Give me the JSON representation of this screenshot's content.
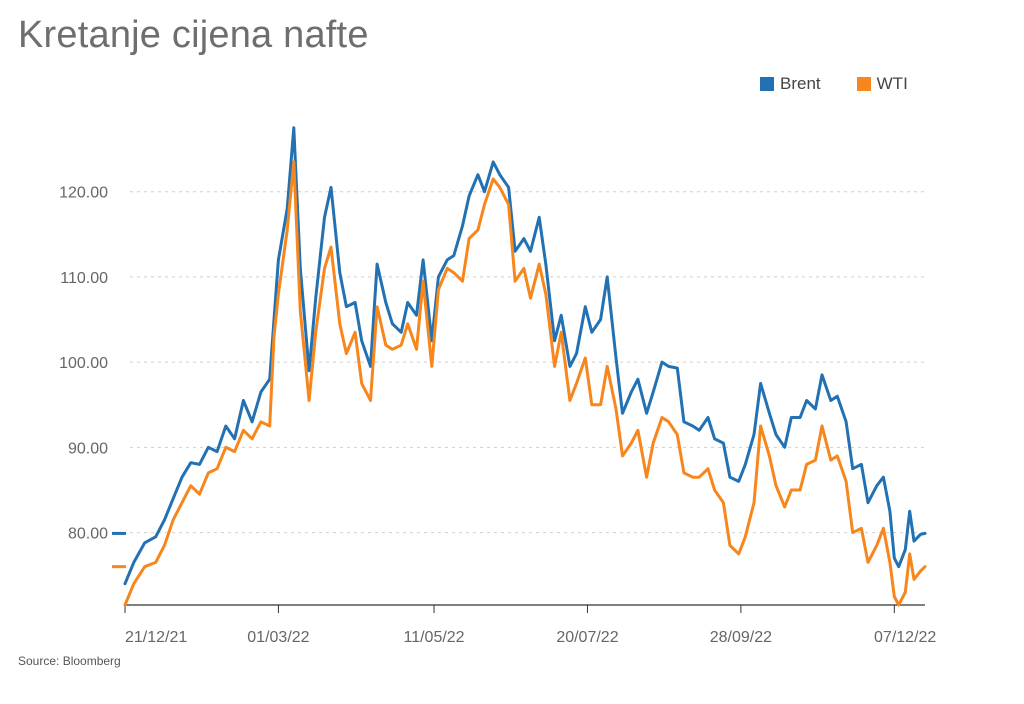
{
  "title": "Kretanje cijena nafte",
  "source": "Source: Bloomberg",
  "colors": {
    "brent": "#2271b3",
    "wti": "#f7861d",
    "grid": "#d0d0d0",
    "axis": "#333333"
  },
  "chart_data": {
    "type": "line",
    "title": "Kretanje cijena nafte",
    "xlabel": "",
    "ylabel": "",
    "ylim": [
      71.5,
      129
    ],
    "grid": true,
    "legend_position": "top-right",
    "y_ticks": [
      "80.00",
      "90.00",
      "100.00",
      "110.00",
      "120.00"
    ],
    "y_tick_values": [
      80,
      90,
      100,
      110,
      120
    ],
    "x_ticks": [
      "21/12/21",
      "01/03/22",
      "11/05/22",
      "20/07/22",
      "28/09/22",
      "07/12/22"
    ],
    "last_values": {
      "Brent": 79.9,
      "WTI": 76.0
    },
    "series": [
      {
        "name": "Brent",
        "points": [
          [
            "21/12/21",
            74.0
          ],
          [
            "25/12/21",
            76.5
          ],
          [
            "30/12/21",
            78.8
          ],
          [
            "04/01/22",
            79.5
          ],
          [
            "08/01/22",
            81.5
          ],
          [
            "12/01/22",
            84.0
          ],
          [
            "16/01/22",
            86.5
          ],
          [
            "20/01/22",
            88.2
          ],
          [
            "24/01/22",
            88.0
          ],
          [
            "28/01/22",
            90.0
          ],
          [
            "01/02/22",
            89.5
          ],
          [
            "05/02/22",
            92.5
          ],
          [
            "09/02/22",
            91.0
          ],
          [
            "13/02/22",
            95.5
          ],
          [
            "17/02/22",
            93.0
          ],
          [
            "21/02/22",
            96.5
          ],
          [
            "25/02/22",
            98.0
          ],
          [
            "27/02/22",
            105.0
          ],
          [
            "01/03/22",
            112.0
          ],
          [
            "05/03/22",
            118.0
          ],
          [
            "08/03/22",
            127.5
          ],
          [
            "11/03/22",
            111.0
          ],
          [
            "15/03/22",
            99.0
          ],
          [
            "18/03/22",
            107.5
          ],
          [
            "22/03/22",
            117.0
          ],
          [
            "25/03/22",
            120.5
          ],
          [
            "29/03/22",
            110.5
          ],
          [
            "01/04/22",
            106.5
          ],
          [
            "05/04/22",
            107.0
          ],
          [
            "08/04/22",
            102.5
          ],
          [
            "12/04/22",
            99.5
          ],
          [
            "15/04/22",
            111.5
          ],
          [
            "19/04/22",
            107.0
          ],
          [
            "22/04/22",
            104.5
          ],
          [
            "26/04/22",
            103.5
          ],
          [
            "29/04/22",
            107.0
          ],
          [
            "03/05/22",
            105.5
          ],
          [
            "06/05/22",
            112.0
          ],
          [
            "10/05/22",
            102.5
          ],
          [
            "13/05/22",
            110.0
          ],
          [
            "17/05/22",
            112.0
          ],
          [
            "20/05/22",
            112.5
          ],
          [
            "24/05/22",
            116.0
          ],
          [
            "27/05/22",
            119.5
          ],
          [
            "31/05/22",
            122.0
          ],
          [
            "03/06/22",
            120.0
          ],
          [
            "07/06/22",
            123.5
          ],
          [
            "10/06/22",
            122.0
          ],
          [
            "14/06/22",
            120.5
          ],
          [
            "17/06/22",
            113.0
          ],
          [
            "21/06/22",
            114.5
          ],
          [
            "24/06/22",
            113.0
          ],
          [
            "28/06/22",
            117.0
          ],
          [
            "01/07/22",
            111.5
          ],
          [
            "05/07/22",
            102.5
          ],
          [
            "08/07/22",
            105.5
          ],
          [
            "12/07/22",
            99.5
          ],
          [
            "15/07/22",
            101.0
          ],
          [
            "19/07/22",
            106.5
          ],
          [
            "22/07/22",
            103.5
          ],
          [
            "26/07/22",
            105.0
          ],
          [
            "29/07/22",
            110.0
          ],
          [
            "02/08/22",
            100.5
          ],
          [
            "05/08/22",
            94.0
          ],
          [
            "09/08/22",
            96.5
          ],
          [
            "12/08/22",
            98.0
          ],
          [
            "16/08/22",
            94.0
          ],
          [
            "19/08/22",
            96.5
          ],
          [
            "23/08/22",
            100.0
          ],
          [
            "26/08/22",
            99.5
          ],
          [
            "30/08/22",
            99.3
          ],
          [
            "02/09/22",
            93.0
          ],
          [
            "06/09/22",
            92.5
          ],
          [
            "09/09/22",
            92.0
          ],
          [
            "13/09/22",
            93.5
          ],
          [
            "16/09/22",
            91.0
          ],
          [
            "20/09/22",
            90.5
          ],
          [
            "23/09/22",
            86.5
          ],
          [
            "27/09/22",
            86.0
          ],
          [
            "30/09/22",
            88.0
          ],
          [
            "04/10/22",
            91.5
          ],
          [
            "07/10/22",
            97.5
          ],
          [
            "11/10/22",
            94.0
          ],
          [
            "14/10/22",
            91.5
          ],
          [
            "18/10/22",
            90.0
          ],
          [
            "21/10/22",
            93.5
          ],
          [
            "25/10/22",
            93.5
          ],
          [
            "28/10/22",
            95.5
          ],
          [
            "01/11/22",
            94.5
          ],
          [
            "04/11/22",
            98.5
          ],
          [
            "08/11/22",
            95.5
          ],
          [
            "11/11/22",
            96.0
          ],
          [
            "15/11/22",
            93.0
          ],
          [
            "18/11/22",
            87.5
          ],
          [
            "22/11/22",
            88.0
          ],
          [
            "25/11/22",
            83.5
          ],
          [
            "29/11/22",
            85.5
          ],
          [
            "02/12/22",
            86.5
          ],
          [
            "05/12/22",
            82.5
          ],
          [
            "07/12/22",
            77.0
          ],
          [
            "09/12/22",
            76.0
          ],
          [
            "12/12/22",
            78.0
          ],
          [
            "14/12/22",
            82.5
          ],
          [
            "16/12/22",
            79.0
          ],
          [
            "19/12/22",
            79.8
          ],
          [
            "21/12/22",
            79.9
          ]
        ]
      },
      {
        "name": "WTI",
        "points": [
          [
            "21/12/21",
            71.5
          ],
          [
            "25/12/21",
            74.0
          ],
          [
            "30/12/21",
            76.0
          ],
          [
            "04/01/22",
            76.5
          ],
          [
            "08/01/22",
            78.5
          ],
          [
            "12/01/22",
            81.5
          ],
          [
            "16/01/22",
            83.5
          ],
          [
            "20/01/22",
            85.5
          ],
          [
            "24/01/22",
            84.5
          ],
          [
            "28/01/22",
            87.0
          ],
          [
            "01/02/22",
            87.5
          ],
          [
            "05/02/22",
            90.0
          ],
          [
            "09/02/22",
            89.5
          ],
          [
            "13/02/22",
            92.0
          ],
          [
            "17/02/22",
            91.0
          ],
          [
            "21/02/22",
            93.0
          ],
          [
            "25/02/22",
            92.5
          ],
          [
            "27/02/22",
            103.0
          ],
          [
            "01/03/22",
            108.0
          ],
          [
            "05/03/22",
            115.5
          ],
          [
            "08/03/22",
            123.5
          ],
          [
            "11/03/22",
            106.0
          ],
          [
            "15/03/22",
            95.5
          ],
          [
            "18/03/22",
            103.5
          ],
          [
            "22/03/22",
            111.0
          ],
          [
            "25/03/22",
            113.5
          ],
          [
            "29/03/22",
            104.5
          ],
          [
            "01/04/22",
            101.0
          ],
          [
            "05/04/22",
            103.5
          ],
          [
            "08/04/22",
            97.5
          ],
          [
            "12/04/22",
            95.5
          ],
          [
            "15/04/22",
            106.5
          ],
          [
            "19/04/22",
            102.0
          ],
          [
            "22/04/22",
            101.5
          ],
          [
            "26/04/22",
            102.0
          ],
          [
            "29/04/22",
            104.5
          ],
          [
            "03/05/22",
            101.5
          ],
          [
            "06/05/22",
            109.5
          ],
          [
            "10/05/22",
            99.5
          ],
          [
            "13/05/22",
            108.5
          ],
          [
            "17/05/22",
            111.0
          ],
          [
            "20/05/22",
            110.5
          ],
          [
            "24/05/22",
            109.5
          ],
          [
            "27/05/22",
            114.5
          ],
          [
            "31/05/22",
            115.5
          ],
          [
            "03/06/22",
            118.5
          ],
          [
            "07/06/22",
            121.5
          ],
          [
            "10/06/22",
            120.5
          ],
          [
            "14/06/22",
            118.5
          ],
          [
            "17/06/22",
            109.5
          ],
          [
            "21/06/22",
            111.0
          ],
          [
            "24/06/22",
            107.5
          ],
          [
            "28/06/22",
            111.5
          ],
          [
            "01/07/22",
            108.0
          ],
          [
            "05/07/22",
            99.5
          ],
          [
            "08/07/22",
            103.5
          ],
          [
            "12/07/22",
            95.5
          ],
          [
            "15/07/22",
            97.5
          ],
          [
            "19/07/22",
            100.5
          ],
          [
            "22/07/22",
            95.0
          ],
          [
            "26/07/22",
            95.0
          ],
          [
            "29/07/22",
            99.5
          ],
          [
            "02/08/22",
            94.5
          ],
          [
            "05/08/22",
            89.0
          ],
          [
            "09/08/22",
            90.5
          ],
          [
            "12/08/22",
            92.0
          ],
          [
            "16/08/22",
            86.5
          ],
          [
            "19/08/22",
            90.5
          ],
          [
            "23/08/22",
            93.5
          ],
          [
            "26/08/22",
            93.0
          ],
          [
            "30/08/22",
            91.5
          ],
          [
            "02/09/22",
            87.0
          ],
          [
            "06/09/22",
            86.5
          ],
          [
            "09/09/22",
            86.5
          ],
          [
            "13/09/22",
            87.5
          ],
          [
            "16/09/22",
            85.0
          ],
          [
            "20/09/22",
            83.5
          ],
          [
            "23/09/22",
            78.5
          ],
          [
            "27/09/22",
            77.5
          ],
          [
            "30/09/22",
            79.5
          ],
          [
            "04/10/22",
            83.5
          ],
          [
            "07/10/22",
            92.5
          ],
          [
            "11/10/22",
            89.0
          ],
          [
            "14/10/22",
            85.5
          ],
          [
            "18/10/22",
            83.0
          ],
          [
            "21/10/22",
            85.0
          ],
          [
            "25/10/22",
            85.0
          ],
          [
            "28/10/22",
            88.0
          ],
          [
            "01/11/22",
            88.5
          ],
          [
            "04/11/22",
            92.5
          ],
          [
            "08/11/22",
            88.5
          ],
          [
            "11/11/22",
            89.0
          ],
          [
            "15/11/22",
            86.0
          ],
          [
            "18/11/22",
            80.0
          ],
          [
            "22/11/22",
            80.5
          ],
          [
            "25/11/22",
            76.5
          ],
          [
            "29/11/22",
            78.5
          ],
          [
            "02/12/22",
            80.5
          ],
          [
            "05/12/22",
            76.5
          ],
          [
            "07/12/22",
            72.5
          ],
          [
            "09/12/22",
            71.5
          ],
          [
            "12/12/22",
            73.0
          ],
          [
            "14/12/22",
            77.5
          ],
          [
            "16/12/22",
            74.5
          ],
          [
            "19/12/22",
            75.5
          ],
          [
            "21/12/22",
            76.0
          ]
        ]
      }
    ]
  }
}
